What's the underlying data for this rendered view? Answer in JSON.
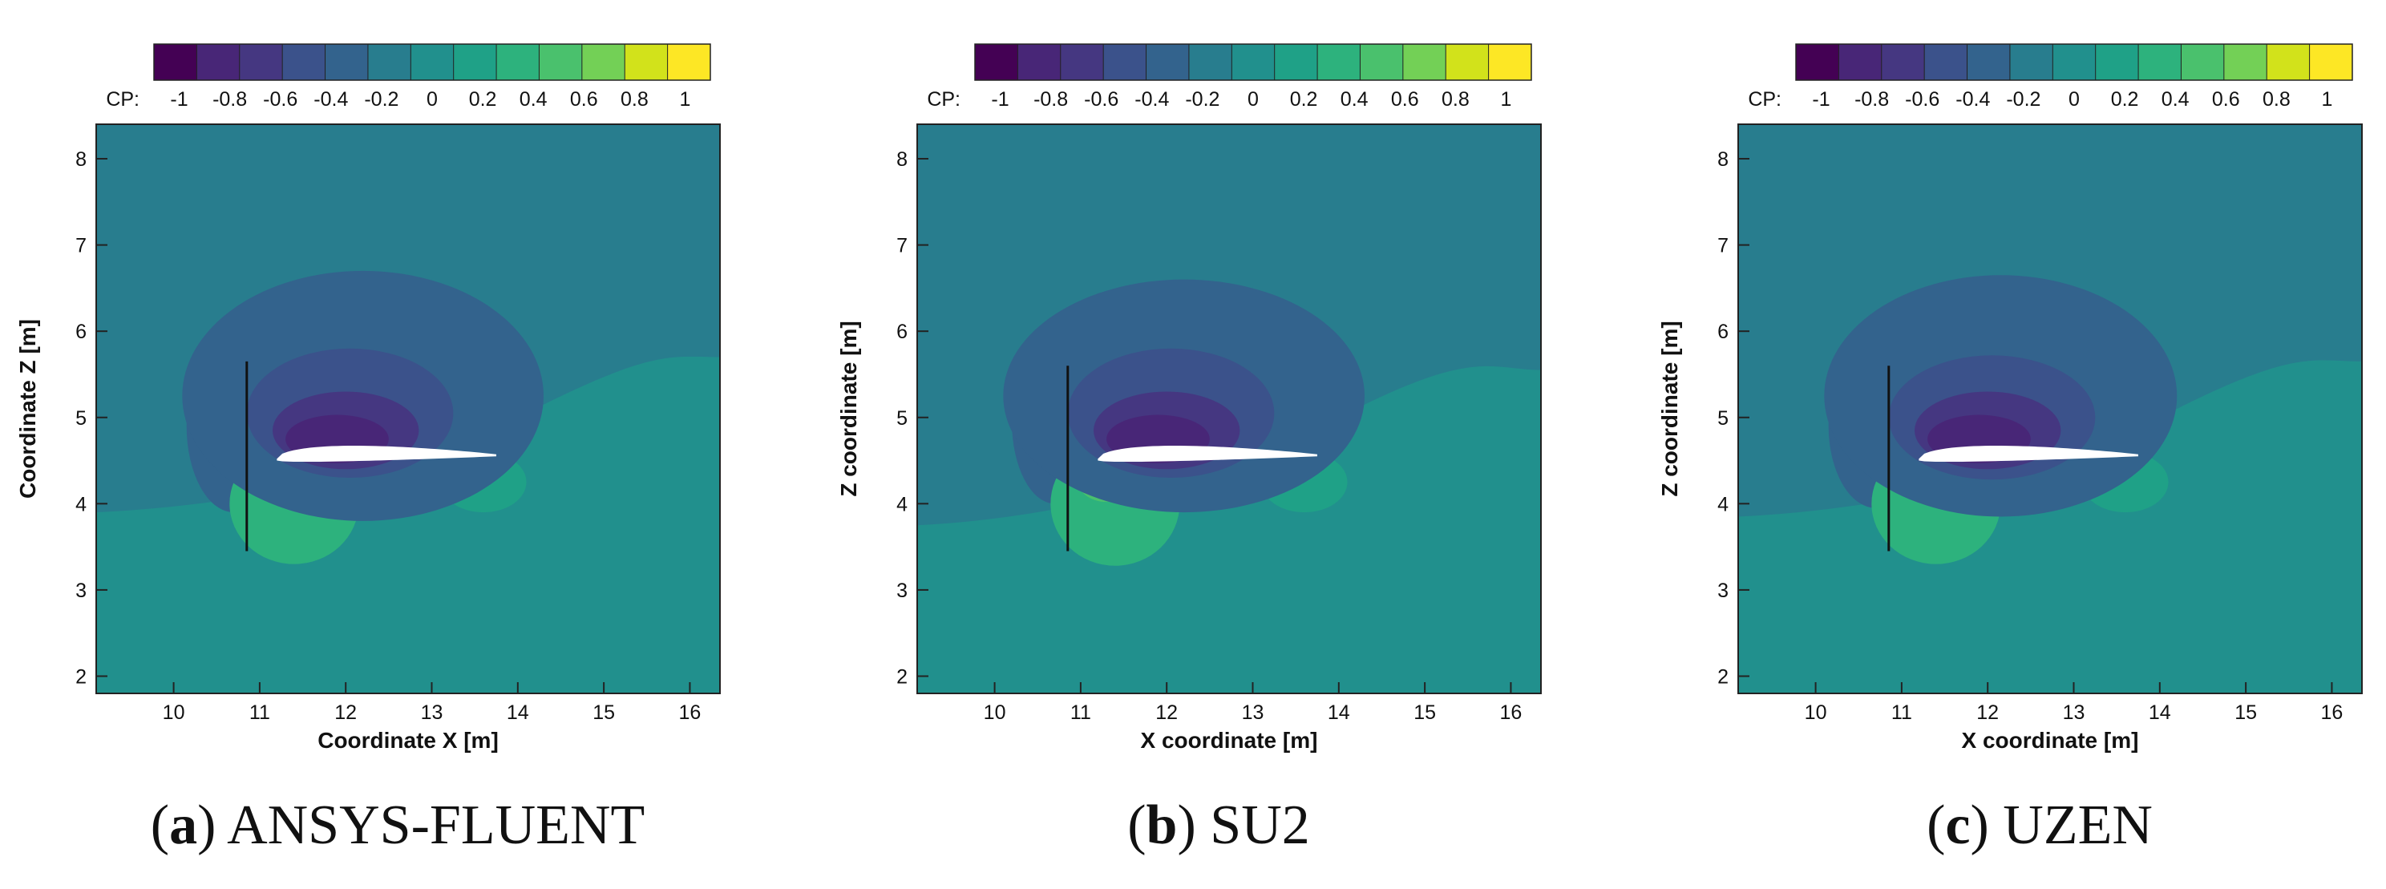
{
  "chart_data": [
    {
      "type": "heatmap",
      "panel_id": "a",
      "panel_label": "a",
      "caption": "ANSYS-FLUENT",
      "xlabel": "Coordinate X [m]",
      "ylabel": "Coordinate Z [m]",
      "xlim": [
        9.1,
        16.35
      ],
      "ylim": [
        1.8,
        8.4
      ],
      "xticks": [
        10,
        11,
        12,
        13,
        14,
        15,
        16
      ],
      "yticks": [
        2,
        3,
        4,
        5,
        6,
        7,
        8
      ],
      "colorbar": {
        "label": "CP:",
        "ticks": [
          "-1",
          "-0.8",
          "-0.6",
          "-0.4",
          "-0.2",
          "0",
          "0.2",
          "0.4",
          "0.6",
          "0.8",
          "1"
        ],
        "range": [
          -1.1,
          1.1
        ],
        "levels": [
          "#440154",
          "#482677",
          "#453781",
          "#3b528b",
          "#33638d",
          "#287d8e",
          "#21908d",
          "#1fa187",
          "#2db27d",
          "#4ac16d",
          "#73d056",
          "#d2e21b",
          "#fde725"
        ]
      },
      "field": {
        "freestream_upper_cp": -0.1,
        "freestream_lower_cp": 0.0,
        "dividing_line_z": 3.9,
        "far_lower_right_cp": 0.05,
        "upper_suction_lobes": [
          {
            "center": [
              12.2,
              5.25
            ],
            "rx": 2.1,
            "ry": 1.45,
            "cp": -0.3
          },
          {
            "center": [
              12.05,
              5.05
            ],
            "rx": 1.2,
            "ry": 0.75,
            "cp": -0.5
          },
          {
            "center": [
              12.0,
              4.85
            ],
            "rx": 0.85,
            "ry": 0.45,
            "cp": -0.7
          },
          {
            "center": [
              11.9,
              4.75
            ],
            "rx": 0.6,
            "ry": 0.28,
            "cp": -0.9
          }
        ],
        "upstream_lobe": {
          "center": [
            10.7,
            4.9
          ],
          "rx": 0.55,
          "ry": 1.0,
          "cp": -0.3
        },
        "stagnation_lobes": [
          {
            "center": [
              11.4,
              4.0
            ],
            "rx": 0.75,
            "ry": 0.7,
            "cp": 0.3
          },
          {
            "center": [
              11.3,
              4.3
            ],
            "rx": 0.35,
            "ry": 0.28,
            "cp": 0.45
          },
          {
            "center": [
              11.22,
              4.4
            ],
            "rx": 0.13,
            "ry": 0.13,
            "cp": 0.65
          }
        ],
        "trailing_edge_lobe": {
          "center": [
            13.6,
            4.25
          ],
          "rx": 0.5,
          "ry": 0.35,
          "cp": 0.25
        }
      },
      "airfoil": {
        "leading_edge": [
          11.2,
          4.5
        ],
        "trailing_edge": [
          13.75,
          4.55
        ],
        "max_thickness": 0.32,
        "color": "#ffffff"
      },
      "plate": {
        "x": 10.85,
        "z_bottom": 3.45,
        "z_top": 5.65
      }
    },
    {
      "type": "heatmap",
      "panel_id": "b",
      "panel_label": "b",
      "caption": "SU2",
      "xlabel": "X coordinate [m]",
      "ylabel": "Z coordinate [m]",
      "xlim": [
        9.1,
        16.35
      ],
      "ylim": [
        1.8,
        8.4
      ],
      "xticks": [
        10,
        11,
        12,
        13,
        14,
        15,
        16
      ],
      "yticks": [
        2,
        3,
        4,
        5,
        6,
        7,
        8
      ],
      "colorbar": {
        "label": "CP:",
        "ticks": [
          "-1",
          "-0.8",
          "-0.6",
          "-0.4",
          "-0.2",
          "0",
          "0.2",
          "0.4",
          "0.6",
          "0.8",
          "1"
        ],
        "range": [
          -1.1,
          1.1
        ],
        "levels": [
          "#440154",
          "#482677",
          "#453781",
          "#3b528b",
          "#33638d",
          "#287d8e",
          "#21908d",
          "#1fa187",
          "#2db27d",
          "#4ac16d",
          "#73d056",
          "#d2e21b",
          "#fde725"
        ]
      },
      "field": {
        "freestream_upper_cp": -0.1,
        "freestream_lower_cp": 0.0,
        "dividing_line_z": 3.75,
        "far_lower_right_cp": 0.05,
        "upper_suction_lobes": [
          {
            "center": [
              12.2,
              5.25
            ],
            "rx": 2.1,
            "ry": 1.35,
            "cp": -0.3
          },
          {
            "center": [
              12.05,
              5.05
            ],
            "rx": 1.2,
            "ry": 0.75,
            "cp": -0.5
          },
          {
            "center": [
              12.0,
              4.85
            ],
            "rx": 0.85,
            "ry": 0.45,
            "cp": -0.7
          },
          {
            "center": [
              11.9,
              4.75
            ],
            "rx": 0.6,
            "ry": 0.28,
            "cp": -0.9
          }
        ],
        "upstream_lobe": {
          "center": [
            10.7,
            4.95
          ],
          "rx": 0.5,
          "ry": 0.95,
          "cp": -0.3
        },
        "stagnation_lobes": [
          {
            "center": [
              11.4,
              4.0
            ],
            "rx": 0.75,
            "ry": 0.72,
            "cp": 0.3
          },
          {
            "center": [
              11.3,
              4.3
            ],
            "rx": 0.35,
            "ry": 0.28,
            "cp": 0.45
          },
          {
            "center": [
              11.22,
              4.4
            ],
            "rx": 0.13,
            "ry": 0.13,
            "cp": 0.65
          }
        ],
        "trailing_edge_lobe": {
          "center": [
            13.6,
            4.25
          ],
          "rx": 0.5,
          "ry": 0.35,
          "cp": 0.25
        }
      },
      "airfoil": {
        "leading_edge": [
          11.2,
          4.5
        ],
        "trailing_edge": [
          13.75,
          4.55
        ],
        "max_thickness": 0.32,
        "color": "#ffffff"
      },
      "plate": {
        "x": 10.85,
        "z_bottom": 3.45,
        "z_top": 5.6
      }
    },
    {
      "type": "heatmap",
      "panel_id": "c",
      "panel_label": "c",
      "caption": "UZEN",
      "xlabel": "X coordinate [m]",
      "ylabel": "Z coordinate [m]",
      "xlim": [
        9.1,
        16.35
      ],
      "ylim": [
        1.8,
        8.4
      ],
      "xticks": [
        10,
        11,
        12,
        13,
        14,
        15,
        16
      ],
      "yticks": [
        2,
        3,
        4,
        5,
        6,
        7,
        8
      ],
      "colorbar": {
        "label": "CP:",
        "ticks": [
          "-1",
          "-0.8",
          "-0.6",
          "-0.4",
          "-0.2",
          "0",
          "0.2",
          "0.4",
          "0.6",
          "0.8",
          "1"
        ],
        "range": [
          -1.1,
          1.1
        ],
        "levels": [
          "#440154",
          "#482677",
          "#453781",
          "#3b528b",
          "#33638d",
          "#287d8e",
          "#21908d",
          "#1fa187",
          "#2db27d",
          "#4ac16d",
          "#73d056",
          "#d2e21b",
          "#fde725"
        ]
      },
      "field": {
        "freestream_upper_cp": -0.1,
        "freestream_lower_cp": 0.0,
        "dividing_line_z": 3.85,
        "far_lower_right_cp": 0.05,
        "upper_suction_lobes": [
          {
            "center": [
              12.15,
              5.25
            ],
            "rx": 2.05,
            "ry": 1.4,
            "cp": -0.3
          },
          {
            "center": [
              12.05,
              5.0
            ],
            "rx": 1.2,
            "ry": 0.72,
            "cp": -0.5
          },
          {
            "center": [
              12.0,
              4.85
            ],
            "rx": 0.85,
            "ry": 0.45,
            "cp": -0.7
          },
          {
            "center": [
              11.9,
              4.75
            ],
            "rx": 0.6,
            "ry": 0.28,
            "cp": -0.9
          }
        ],
        "upstream_lobe": {
          "center": [
            10.7,
            4.9
          ],
          "rx": 0.55,
          "ry": 0.95,
          "cp": -0.3
        },
        "stagnation_lobes": [
          {
            "center": [
              11.4,
              4.0
            ],
            "rx": 0.75,
            "ry": 0.7,
            "cp": 0.3
          },
          {
            "center": [
              11.3,
              4.3
            ],
            "rx": 0.35,
            "ry": 0.28,
            "cp": 0.45
          },
          {
            "center": [
              11.22,
              4.4
            ],
            "rx": 0.13,
            "ry": 0.13,
            "cp": 0.65
          }
        ],
        "trailing_edge_lobe": {
          "center": [
            13.6,
            4.25
          ],
          "rx": 0.5,
          "ry": 0.35,
          "cp": 0.25
        }
      },
      "airfoil": {
        "leading_edge": [
          11.2,
          4.5
        ],
        "trailing_edge": [
          13.75,
          4.55
        ],
        "max_thickness": 0.32,
        "color": "#ffffff"
      },
      "plate": {
        "x": 10.85,
        "z_bottom": 3.45,
        "z_top": 5.6
      }
    }
  ]
}
